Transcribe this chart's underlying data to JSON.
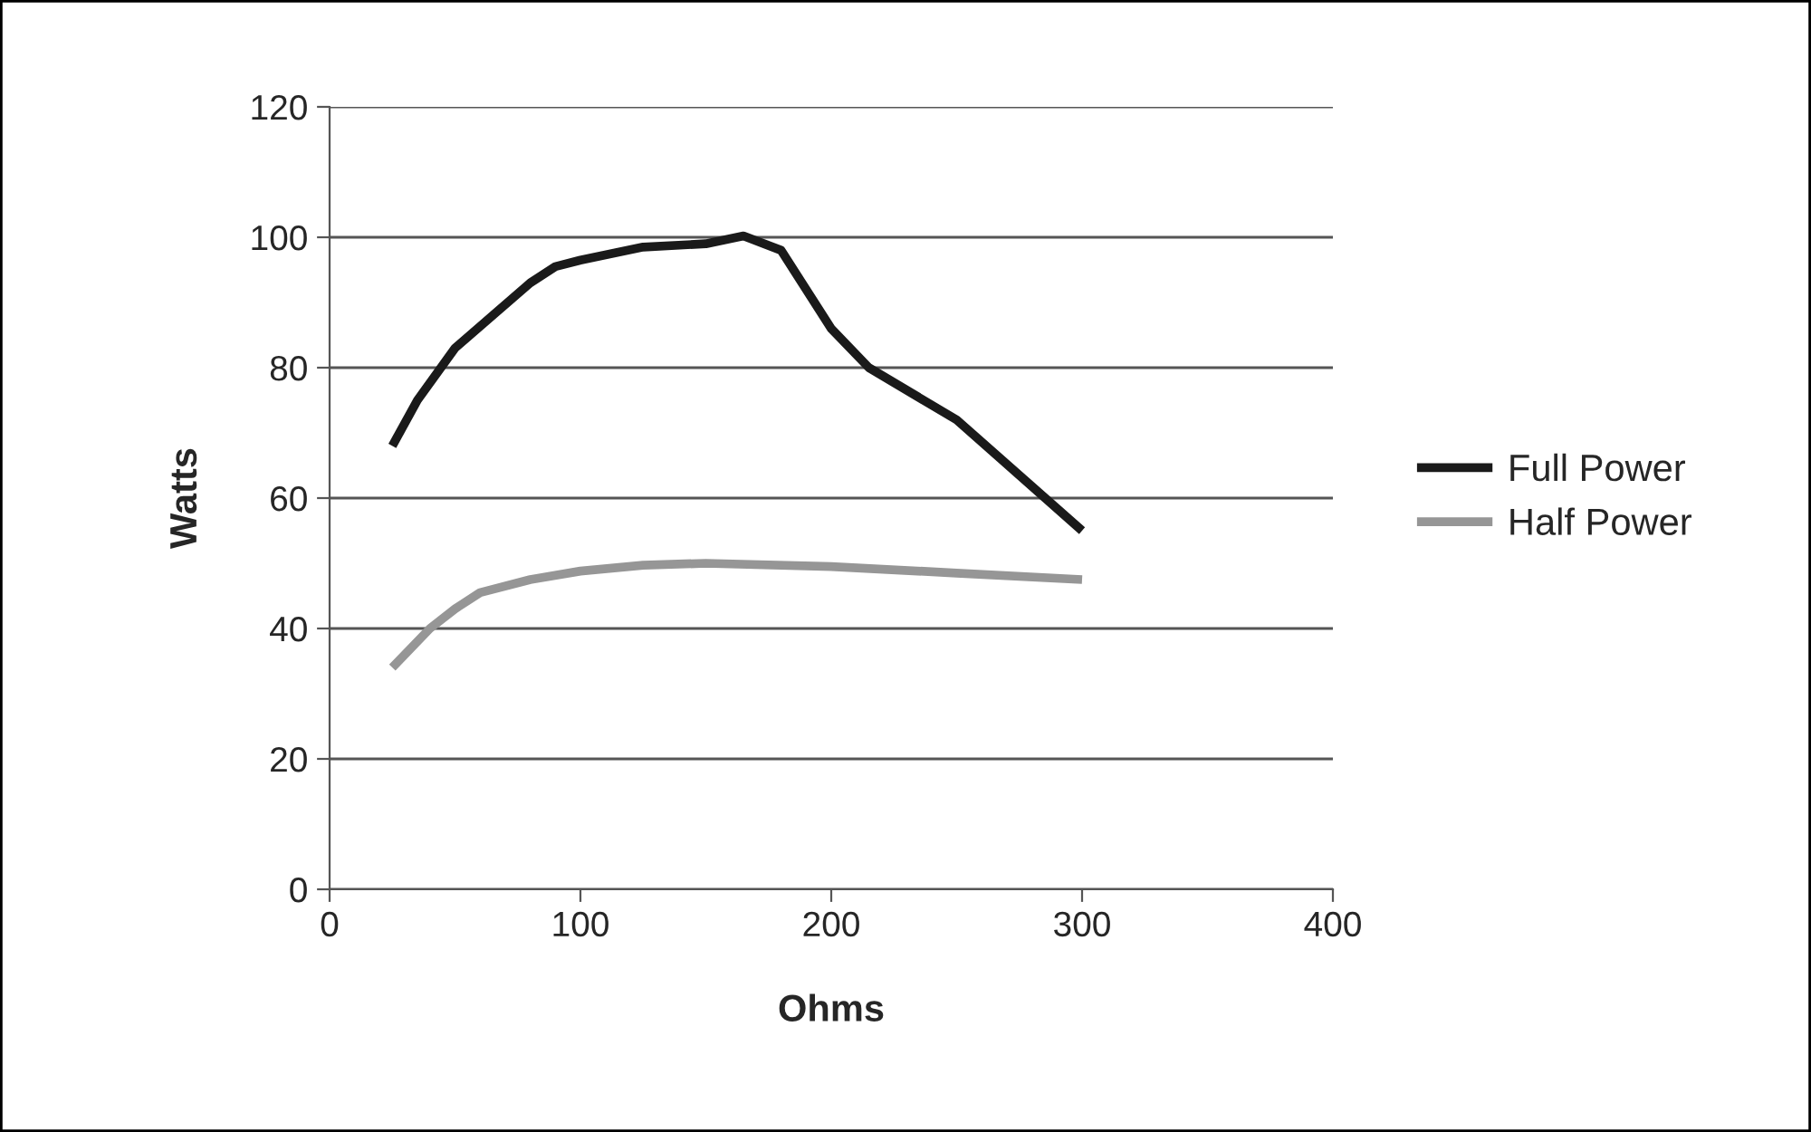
{
  "chart_data": {
    "type": "line",
    "xlabel": "Ohms",
    "ylabel": "Watts",
    "xlim": [
      0,
      400
    ],
    "xticks": [
      0,
      100,
      200,
      300,
      400
    ],
    "ylim": [
      0,
      120
    ],
    "yticks": [
      0,
      20,
      40,
      60,
      80,
      100,
      120
    ],
    "grid": "y",
    "legend": "right",
    "line_style": "solid",
    "marker": "none",
    "series": [
      {
        "name": "Full Power",
        "color": "#1a1a1a",
        "x": [
          25,
          35,
          50,
          65,
          80,
          90,
          100,
          125,
          150,
          165,
          180,
          190,
          200,
          215,
          250,
          300
        ],
        "values": [
          68,
          75,
          83,
          88,
          93,
          95.5,
          96.5,
          98.5,
          99,
          100.2,
          98,
          92,
          86,
          80,
          72,
          55
        ]
      },
      {
        "name": "Half Power",
        "color": "#969696",
        "x": [
          25,
          40,
          50,
          60,
          80,
          100,
          125,
          150,
          200,
          250,
          300
        ],
        "values": [
          34,
          40,
          43,
          45.5,
          47.5,
          48.8,
          49.7,
          50,
          49.5,
          48.5,
          47.5
        ]
      }
    ]
  }
}
